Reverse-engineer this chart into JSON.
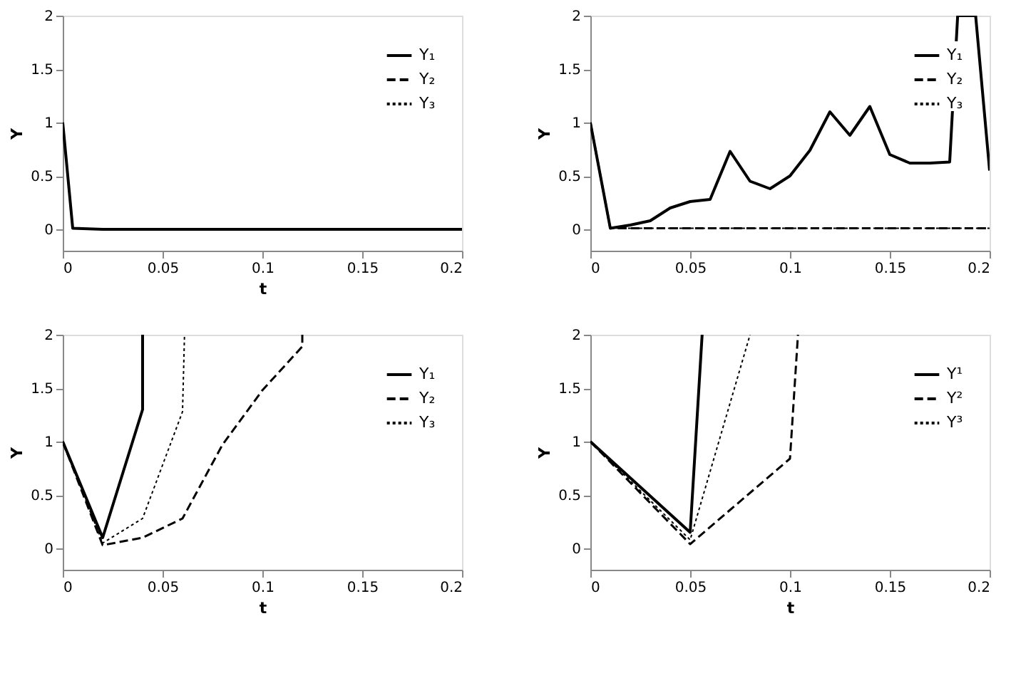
{
  "chart_data": [
    {
      "type": "line",
      "xlabel": "t",
      "ylabel": "Y",
      "xlim": [
        0,
        0.2
      ],
      "xticks": [
        0,
        0.05,
        0.1,
        0.15,
        0.2
      ],
      "ylim": [
        -0.2,
        2
      ],
      "yticks": [
        0,
        0.5,
        1,
        1.5,
        2
      ],
      "grid": false,
      "legend": "top right",
      "marker": "none",
      "series": [
        {
          "name": "Y₁",
          "color": "#000000",
          "line_style": "solid",
          "x": [
            0,
            0.005,
            0.02,
            0.2
          ],
          "values": [
            1,
            0.01,
            0,
            0
          ]
        },
        {
          "name": "Y₂",
          "color": "#000000",
          "line_style": "dashed"
        },
        {
          "name": "Y₃",
          "color": "#000000",
          "line_style": "dotted"
        }
      ]
    },
    {
      "type": "line",
      "ylabel": "Y",
      "xlim": [
        0,
        0.2
      ],
      "xticks": [
        0,
        0.05,
        0.1,
        0.15,
        0.2
      ],
      "ylim": [
        -0.2,
        2
      ],
      "yticks": [
        0,
        0.5,
        1,
        1.5,
        2
      ],
      "grid": false,
      "legend": "top right",
      "marker": "none",
      "series": [
        {
          "name": "Y₁",
          "color": "#000000",
          "line_style": "solid",
          "x": [
            0,
            0.01,
            0.02,
            0.03,
            0.04,
            0.05,
            0.06,
            0.07,
            0.08,
            0.09,
            0.1,
            0.11,
            0.12,
            0.13,
            0.14,
            0.15,
            0.16,
            0.17,
            0.18,
            0.184,
            0.193,
            0.2
          ],
          "values": [
            1,
            0.01,
            0.04,
            0.08,
            0.2,
            0.26,
            0.28,
            0.73,
            0.45,
            0.38,
            0.5,
            0.74,
            1.1,
            0.88,
            1.15,
            0.7,
            0.62,
            0.62,
            0.63,
            2,
            2,
            0.55
          ]
        },
        {
          "name": "Y₂",
          "color": "#000000",
          "line_style": "dashed",
          "x": [
            0,
            0.01,
            0.2
          ],
          "values": [
            1,
            0.01,
            0.01
          ]
        },
        {
          "name": "Y₃",
          "color": "#000000",
          "line_style": "dotted",
          "x": [
            0,
            0.01,
            0.2
          ],
          "values": [
            1,
            0.01,
            0.01
          ]
        }
      ]
    },
    {
      "type": "line",
      "xlabel": "t",
      "ylabel": "Y",
      "xlim": [
        0,
        0.2
      ],
      "xticks": [
        0,
        0.05,
        0.1,
        0.15,
        0.2
      ],
      "ylim": [
        -0.2,
        2
      ],
      "yticks": [
        0,
        0.5,
        1,
        1.5,
        2
      ],
      "grid": false,
      "legend": "top right",
      "marker": "none",
      "series": [
        {
          "name": "Y₁",
          "color": "#000000",
          "line_style": "solid",
          "x": [
            0,
            0.02,
            0.04,
            0.04
          ],
          "values": [
            1,
            0.1,
            1.3,
            2
          ]
        },
        {
          "name": "Y₂",
          "color": "#000000",
          "line_style": "dashed",
          "x": [
            0,
            0.02,
            0.04,
            0.06,
            0.08,
            0.1,
            0.12,
            0.12
          ],
          "values": [
            1,
            0.03,
            0.1,
            0.28,
            0.97,
            1.48,
            1.89,
            2
          ]
        },
        {
          "name": "Y₃",
          "color": "#000000",
          "line_style": "dotted",
          "x": [
            0,
            0.02,
            0.04,
            0.06,
            0.061
          ],
          "values": [
            1,
            0.05,
            0.28,
            1.28,
            2
          ]
        }
      ]
    },
    {
      "type": "line",
      "xlabel": "t",
      "ylabel": "Y",
      "xlim": [
        0,
        0.2
      ],
      "xticks": [
        0,
        0.05,
        0.1,
        0.15,
        0.2
      ],
      "ylim": [
        -0.2,
        2
      ],
      "yticks": [
        0,
        0.5,
        1,
        1.5,
        2
      ],
      "grid": false,
      "legend": "top right",
      "marker": "none",
      "series": [
        {
          "name": "Y¹",
          "color": "#000000",
          "line_style": "solid",
          "x": [
            0,
            0.05,
            0.056
          ],
          "values": [
            1,
            0.15,
            2
          ]
        },
        {
          "name": "Y²",
          "color": "#000000",
          "line_style": "dashed",
          "x": [
            0,
            0.05,
            0.1,
            0.104
          ],
          "values": [
            1,
            0.04,
            0.84,
            2
          ]
        },
        {
          "name": "Y³",
          "color": "#000000",
          "line_style": "dotted",
          "x": [
            0,
            0.05,
            0.08
          ],
          "values": [
            1,
            0.08,
            2
          ]
        }
      ]
    }
  ]
}
